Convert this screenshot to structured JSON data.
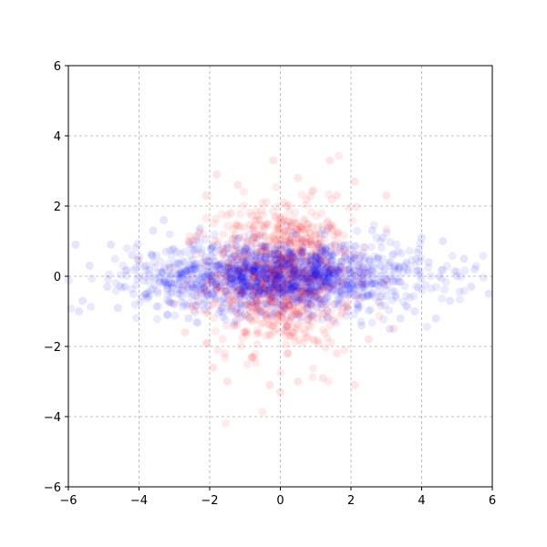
{
  "chart_data": {
    "type": "scatter",
    "title": "",
    "xlabel": "",
    "ylabel": "",
    "xlim": [
      -6,
      6
    ],
    "ylim": [
      -6,
      6
    ],
    "grid": true,
    "grid_style": "dashed",
    "x_ticks": [
      -6,
      -4,
      -2,
      0,
      2,
      4,
      6
    ],
    "y_ticks": [
      -6,
      -4,
      -2,
      0,
      2,
      4,
      6
    ],
    "x_tick_labels": [
      "−6",
      "−4",
      "−2",
      "0",
      "2",
      "4",
      "6"
    ],
    "y_tick_labels": [
      "−6",
      "−4",
      "−2",
      "0",
      "2",
      "4",
      "6"
    ],
    "series": [
      {
        "color": "#ff0000",
        "alpha": 0.08,
        "distribution": {
          "x_mean": 0,
          "x_std": 1,
          "y_mean": 0,
          "y_std": 1,
          "count": 1000
        },
        "points": [
          [
            -0.2,
            3.3
          ],
          [
            1.4,
            3.3
          ],
          [
            -1.8,
            2.9
          ],
          [
            0.5,
            2.8
          ],
          [
            1.6,
            2.3
          ],
          [
            2.1,
            2.7
          ],
          [
            -2.1,
            2.3
          ],
          [
            3.0,
            2.3
          ],
          [
            0.9,
            1.4
          ],
          [
            -1.4,
            1.8
          ],
          [
            -2.6,
            1.0
          ],
          [
            -3.0,
            -0.8
          ],
          [
            -2.7,
            -1.6
          ],
          [
            -1.9,
            -2.6
          ],
          [
            -0.3,
            -3.1
          ],
          [
            0.0,
            -3.3
          ],
          [
            0.5,
            -3.0
          ],
          [
            1.2,
            -2.9
          ],
          [
            2.1,
            -3.1
          ],
          [
            -1.5,
            -3.0
          ],
          [
            2.5,
            -1.8
          ],
          [
            3.2,
            -1.5
          ],
          [
            0.2,
            -2.2
          ],
          [
            -0.8,
            -2.3
          ],
          [
            1.6,
            -2.2
          ],
          [
            -1.2,
            2.6
          ],
          [
            0.1,
            2.1
          ],
          [
            -0.6,
            1.6
          ]
        ]
      },
      {
        "color": "#0000ff",
        "alpha": 0.08,
        "distribution": {
          "x_mean": 0,
          "x_std": 2,
          "y_mean": 0,
          "y_std": 0.5,
          "count": 1500
        },
        "points": [
          [
            -5.8,
            0.9
          ],
          [
            -5.7,
            -1.0
          ],
          [
            -5.6,
            -0.7
          ],
          [
            -5.4,
            0.3
          ],
          [
            -4.9,
            -0.3
          ],
          [
            -4.8,
            0.9
          ],
          [
            -4.6,
            -0.9
          ],
          [
            -4.2,
            0.6
          ],
          [
            -3.6,
            1.3
          ],
          [
            -3.3,
            1.6
          ],
          [
            -3.2,
            -1.1
          ],
          [
            -2.6,
            -1.2
          ],
          [
            -2.9,
            -0.5
          ],
          [
            -3.8,
            -0.5
          ],
          [
            -4.4,
            -0.3
          ],
          [
            5.5,
            0.2
          ],
          [
            5.4,
            -0.3
          ],
          [
            5.2,
            0.5
          ],
          [
            5.0,
            0.0
          ],
          [
            4.8,
            -0.7
          ],
          [
            4.6,
            1.0
          ],
          [
            4.4,
            -1.2
          ],
          [
            4.2,
            0.4
          ],
          [
            4.0,
            1.1
          ],
          [
            3.8,
            -1.0
          ],
          [
            3.6,
            0.2
          ],
          [
            3.4,
            -1.2
          ],
          [
            3.1,
            -1.5
          ],
          [
            2.9,
            1.1
          ],
          [
            2.6,
            1.3
          ],
          [
            2.3,
            -1.4
          ],
          [
            5.9,
            -0.5
          ],
          [
            0.5,
            -1.1
          ],
          [
            -1.0,
            0.8
          ],
          [
            1.2,
            0.3
          ],
          [
            -0.4,
            0.2
          ],
          [
            0.0,
            0.0
          ]
        ]
      }
    ]
  },
  "colors": {
    "red_series": "#ff0000",
    "blue_series": "#0000ff",
    "grid": "#b0b0b0",
    "axes": "#000000",
    "background": "#ffffff"
  }
}
